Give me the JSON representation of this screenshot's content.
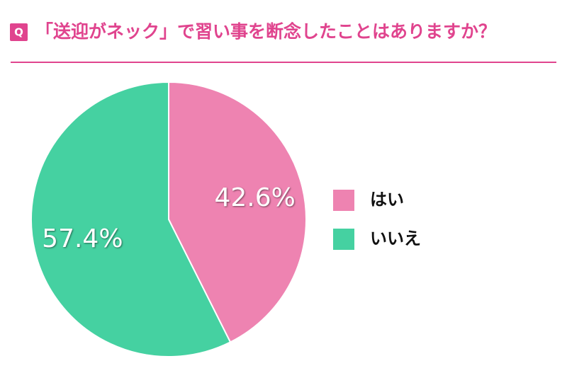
{
  "chart_data": {
    "type": "pie",
    "badge": "Q",
    "title": "「送迎がネック」で習い事を断念したことはありますか？",
    "categories": [
      "はい",
      "いいえ"
    ],
    "values": [
      42.6,
      57.4
    ],
    "value_labels": [
      "42.6%",
      "57.4%"
    ],
    "colors": [
      "#ee83b1",
      "#45d1a1"
    ],
    "title_color": "#e0448e",
    "legend": "right"
  }
}
